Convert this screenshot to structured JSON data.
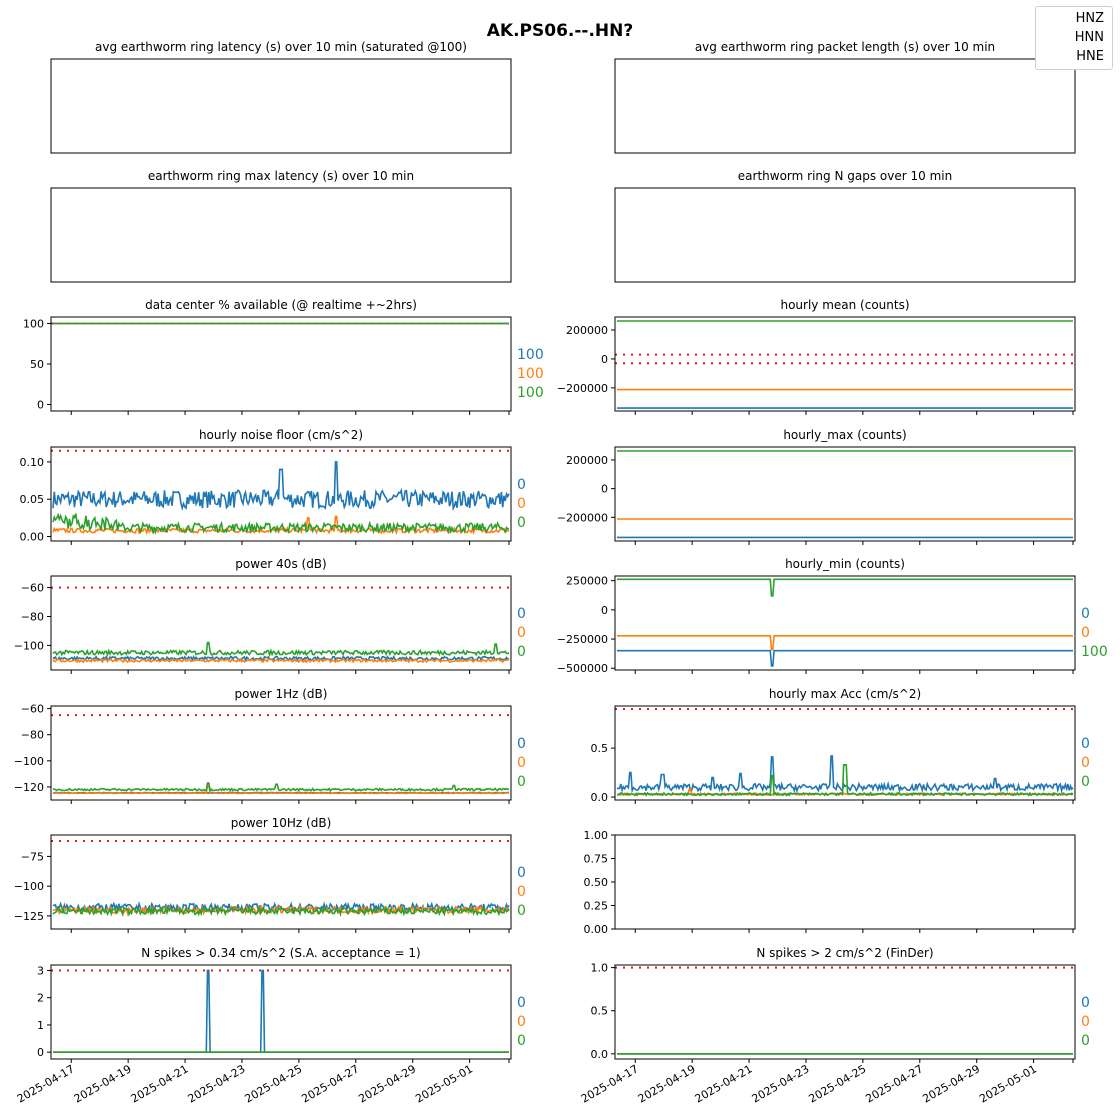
{
  "title": "AK.PS06.--.HN?",
  "legend": {
    "items": [
      "HNZ",
      "HNN",
      "HNE"
    ],
    "placement": "top-right"
  },
  "colors": {
    "HNZ": "#1f77b4",
    "HNN": "#ff7f0e",
    "HNE": "#2ca02c",
    "threshold": "#e8141a"
  },
  "date_ticks": [
    "2025-04-17",
    "2025-04-19",
    "2025-04-21",
    "2025-04-23",
    "2025-04-25",
    "2025-04-27",
    "2025-04-29",
    "2025-05-01"
  ],
  "chart_data": [
    {
      "id": "avg_latency",
      "type": "line",
      "title": "avg earthworm ring latency (s)   over 10 min (saturated @100)",
      "series": [],
      "grid": false
    },
    {
      "id": "avg_packet",
      "type": "line",
      "title": "avg earthworm ring packet length (s)   over 10 min",
      "series": [],
      "grid": false
    },
    {
      "id": "max_latency",
      "type": "line",
      "title": "earthworm ring max latency (s)   over 10 min",
      "series": [],
      "grid": false
    },
    {
      "id": "n_gaps",
      "type": "line",
      "title": "earthworm ring N gaps   over 10 min",
      "series": [],
      "grid": false
    },
    {
      "id": "availability",
      "type": "line",
      "title": "data center % available (@ realtime +~2hrs)",
      "ylim": [
        -8,
        108
      ],
      "yticks": [
        0,
        50,
        100
      ],
      "xlim": [
        "2025-04-15T12",
        "2025-05-01T14"
      ],
      "thresholds": [
        100
      ],
      "side_labels": [
        "100",
        "100",
        "100"
      ],
      "series": [
        {
          "channel": "HNZ",
          "values_const": 100
        },
        {
          "channel": "HNN",
          "values_const": 100
        },
        {
          "channel": "HNE",
          "values_const": 100
        }
      ]
    },
    {
      "id": "hourly_mean",
      "type": "line",
      "title": "hourly mean (counts)",
      "ylim": [
        -360000,
        290000
      ],
      "yticks": [
        -200000,
        0,
        200000
      ],
      "thresholds": [
        30000,
        -30000
      ],
      "side_labels": [],
      "series": [
        {
          "channel": "HNZ",
          "values_const": -340000
        },
        {
          "channel": "HNN",
          "values_const": -212000
        },
        {
          "channel": "HNE",
          "values_const": 262000
        }
      ]
    },
    {
      "id": "noise_floor",
      "type": "line",
      "title": "hourly noise floor (cm/s^2)",
      "ylim": [
        -0.006,
        0.12
      ],
      "yticks": [
        0.0,
        0.05,
        0.1
      ],
      "ytick_labels": [
        "0.00",
        "0.05",
        "0.10"
      ],
      "thresholds": [
        0.115
      ],
      "side_labels": [
        "0",
        "0",
        "0"
      ],
      "series": [
        {
          "channel": "HNZ",
          "base": 0.05,
          "noise": 0.012,
          "spikes": [
            [
              0.62,
              0.1
            ],
            [
              0.5,
              0.09
            ]
          ]
        },
        {
          "channel": "HNN",
          "base": 0.008,
          "noise": 0.003,
          "spikes": [
            [
              0.56,
              0.025
            ],
            [
              0.62,
              0.027
            ]
          ]
        },
        {
          "channel": "HNE",
          "base": 0.012,
          "noise": 0.006,
          "early_boost": 0.015
        }
      ]
    },
    {
      "id": "hourly_max",
      "type": "line",
      "title": "hourly_max (counts)",
      "ylim": [
        -365000,
        290000
      ],
      "yticks": [
        -200000,
        0,
        200000
      ],
      "thresholds": [],
      "side_labels": [],
      "series": [
        {
          "channel": "HNZ",
          "values_const": -340000
        },
        {
          "channel": "HNN",
          "values_const": -212000
        },
        {
          "channel": "HNE",
          "values_const": 262000
        }
      ]
    },
    {
      "id": "power_40s",
      "type": "line",
      "title": "power 40s (dB)",
      "ylim": [
        -117,
        -52
      ],
      "yticks": [
        -100,
        -80,
        -60
      ],
      "thresholds": [
        -60
      ],
      "side_labels": [
        "0",
        "0",
        "0"
      ],
      "series": [
        {
          "channel": "HNZ",
          "base": -109,
          "noise": 1.2
        },
        {
          "channel": "HNN",
          "base": -110.5,
          "noise": 1.0
        },
        {
          "channel": "HNE",
          "base": -105,
          "noise": 1.5,
          "spikes": [
            [
              0.34,
              -98
            ],
            [
              0.97,
              -99
            ]
          ]
        }
      ]
    },
    {
      "id": "hourly_min",
      "type": "line",
      "title": "hourly_min (counts)",
      "ylim": [
        -515000,
        290000
      ],
      "yticks": [
        -500000,
        -250000,
        0,
        250000
      ],
      "thresholds": [],
      "side_labels": [
        "0",
        "0",
        "100"
      ],
      "series": [
        {
          "channel": "HNZ",
          "values_const": -350000,
          "spikes": [
            [
              0.34,
              -480000
            ]
          ]
        },
        {
          "channel": "HNN",
          "values_const": -222000,
          "spikes": [
            [
              0.34,
              -340000
            ]
          ]
        },
        {
          "channel": "HNE",
          "values_const": 262000,
          "spikes": [
            [
              0.34,
              120000
            ]
          ]
        }
      ]
    },
    {
      "id": "power_1hz",
      "type": "line",
      "title": "power 1Hz (dB)",
      "ylim": [
        -130,
        -58
      ],
      "yticks": [
        -120,
        -100,
        -80,
        -60
      ],
      "thresholds": [
        -65
      ],
      "side_labels": [
        "0",
        "0",
        "0"
      ],
      "series": [
        {
          "channel": "HNZ",
          "base": -124.5,
          "noise": 0.3
        },
        {
          "channel": "HNN",
          "base": -124.8,
          "noise": 0.2,
          "spikes": [
            [
              0.34,
              -119
            ]
          ]
        },
        {
          "channel": "HNE",
          "base": -122,
          "noise": 0.8,
          "spikes": [
            [
              0.34,
              -117
            ],
            [
              0.49,
              -118
            ],
            [
              0.88,
              -119
            ]
          ]
        }
      ]
    },
    {
      "id": "hourly_max_acc",
      "type": "line",
      "title": "hourly max Acc (cm/s^2)",
      "ylim": [
        -0.03,
        0.93
      ],
      "yticks": [
        0.0,
        0.5
      ],
      "ytick_labels": [
        "0.0",
        "0.5"
      ],
      "thresholds": [
        0.9
      ],
      "side_labels": [
        "0",
        "0",
        "0"
      ],
      "series": [
        {
          "channel": "HNZ",
          "base": 0.1,
          "noise": 0.035,
          "spikes": [
            [
              0.34,
              0.41
            ],
            [
              0.47,
              0.42
            ],
            [
              0.03,
              0.25
            ],
            [
              0.1,
              0.23
            ],
            [
              0.21,
              0.2
            ],
            [
              0.27,
              0.24
            ],
            [
              0.83,
              0.19
            ]
          ]
        },
        {
          "channel": "HNN",
          "base": 0.03,
          "noise": 0.01,
          "spikes": [
            [
              0.16,
              0.08
            ]
          ]
        },
        {
          "channel": "HNE",
          "base": 0.03,
          "noise": 0.012,
          "spikes": [
            [
              0.34,
              0.22
            ],
            [
              0.5,
              0.33
            ]
          ]
        }
      ]
    },
    {
      "id": "power_10hz",
      "type": "line",
      "title": "power 10Hz (dB)",
      "ylim": [
        -136,
        -57
      ],
      "yticks": [
        -125,
        -100,
        -75
      ],
      "thresholds": [
        -62
      ],
      "side_labels": [
        "0",
        "0",
        "0"
      ],
      "series": [
        {
          "channel": "HNZ",
          "base": -118,
          "noise": 3.2
        },
        {
          "channel": "HNN",
          "base": -120,
          "noise": 2.8
        },
        {
          "channel": "HNE",
          "base": -121,
          "noise": 2.8
        }
      ]
    },
    {
      "id": "empty_axes",
      "type": "line",
      "title": "",
      "ylim": [
        0,
        1
      ],
      "yticks": [
        0.0,
        0.25,
        0.5,
        0.75,
        1.0
      ],
      "ytick_labels": [
        "0.00",
        "0.25",
        "0.50",
        "0.75",
        "1.00"
      ],
      "series": [],
      "side_labels": []
    },
    {
      "id": "spikes_034",
      "type": "line",
      "title": "N spikes > 0.34 cm/s^2 (S.A. acceptance = 1)",
      "ylim": [
        -0.25,
        3.2
      ],
      "yticks": [
        0,
        1,
        2,
        3
      ],
      "thresholds": [
        3
      ],
      "side_labels": [
        "0",
        "0",
        "0"
      ],
      "series": [
        {
          "channel": "HNZ",
          "values_const": 0,
          "spikes": [
            [
              0.34,
              3
            ],
            [
              0.46,
              3
            ]
          ]
        },
        {
          "channel": "HNN",
          "values_const": 0
        },
        {
          "channel": "HNE",
          "values_const": 0
        }
      ]
    },
    {
      "id": "spikes_2",
      "type": "line",
      "title": "N spikes > 2 cm/s^2 (FinDer)",
      "ylim": [
        -0.06,
        1.03
      ],
      "yticks": [
        0.0,
        0.5,
        1.0
      ],
      "ytick_labels": [
        "0.0",
        "0.5",
        "1.0"
      ],
      "thresholds": [
        1
      ],
      "side_labels": [
        "0",
        "0",
        "0"
      ],
      "series": [
        {
          "channel": "HNZ",
          "values_const": 0
        },
        {
          "channel": "HNN",
          "values_const": 0
        },
        {
          "channel": "HNE",
          "values_const": 0
        }
      ]
    }
  ]
}
